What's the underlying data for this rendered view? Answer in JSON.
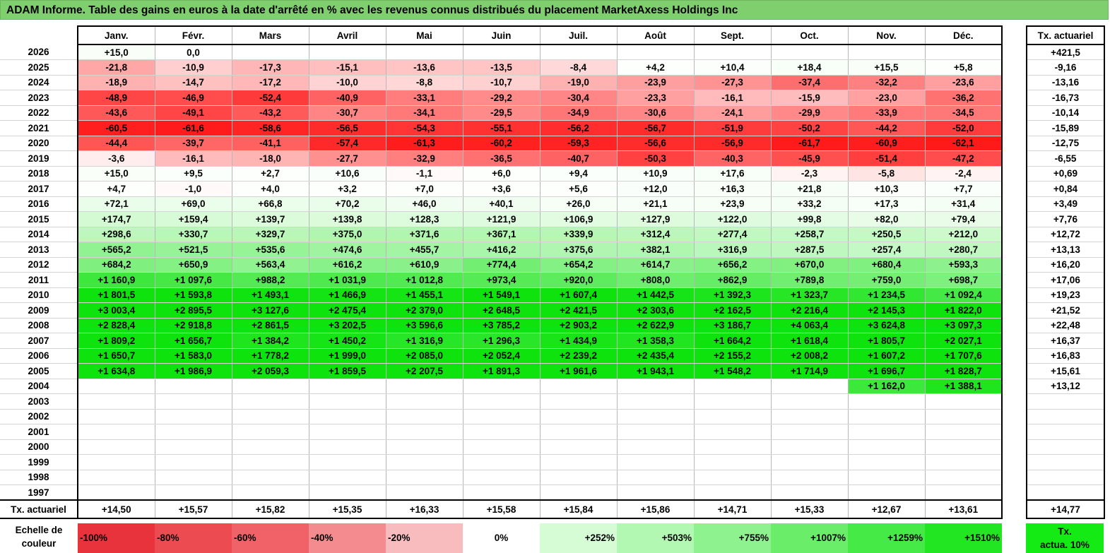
{
  "title": "ADAM Informe. Table des gains en euros à la date d'arrêté en % avec les revenus connus distribués du placement MarketAxess Holdings Inc",
  "chart_data": {
    "type": "table",
    "months": [
      "Janv.",
      "Févr.",
      "Mars",
      "Avril",
      "Mai",
      "Juin",
      "Juil.",
      "Août",
      "Sept.",
      "Oct.",
      "Nov.",
      "Déc."
    ],
    "actuarial_header": "Tx. actuariel",
    "rows": [
      {
        "year": "2026",
        "values": [
          "+15,0",
          "0,0",
          "",
          "",
          "",
          "",
          "",
          "",
          "",
          "",
          "",
          ""
        ],
        "rate": "+421,5"
      },
      {
        "year": "2025",
        "values": [
          "-21,8",
          "-10,9",
          "-17,3",
          "-15,1",
          "-13,6",
          "-13,5",
          "-8,4",
          "+4,2",
          "+10,4",
          "+18,4",
          "+15,5",
          "+5,8"
        ],
        "rate": "-9,16"
      },
      {
        "year": "2024",
        "values": [
          "-18,9",
          "-14,7",
          "-17,2",
          "-10,0",
          "-8,8",
          "-10,7",
          "-19,0",
          "-23,9",
          "-27,3",
          "-37,4",
          "-32,2",
          "-23,6"
        ],
        "rate": "-13,16"
      },
      {
        "year": "2023",
        "values": [
          "-48,9",
          "-46,9",
          "-52,4",
          "-40,9",
          "-33,1",
          "-29,2",
          "-30,4",
          "-23,3",
          "-16,1",
          "-15,9",
          "-23,0",
          "-36,2"
        ],
        "rate": "-16,73"
      },
      {
        "year": "2022",
        "values": [
          "-43,6",
          "-49,1",
          "-43,2",
          "-30,7",
          "-34,1",
          "-29,5",
          "-34,9",
          "-30,6",
          "-24,1",
          "-29,9",
          "-33,9",
          "-34,5"
        ],
        "rate": "-10,14"
      },
      {
        "year": "2021",
        "values": [
          "-60,5",
          "-61,6",
          "-58,6",
          "-56,5",
          "-54,3",
          "-55,1",
          "-56,2",
          "-56,7",
          "-51,9",
          "-50,2",
          "-44,2",
          "-52,0"
        ],
        "rate": "-15,89"
      },
      {
        "year": "2020",
        "values": [
          "-44,4",
          "-39,7",
          "-41,1",
          "-57,4",
          "-61,3",
          "-60,2",
          "-59,3",
          "-56,6",
          "-56,9",
          "-61,7",
          "-60,9",
          "-62,1"
        ],
        "rate": "-12,75"
      },
      {
        "year": "2019",
        "values": [
          "-3,6",
          "-16,1",
          "-18,0",
          "-27,7",
          "-32,9",
          "-36,5",
          "-40,7",
          "-50,3",
          "-40,3",
          "-45,9",
          "-51,4",
          "-47,2"
        ],
        "rate": "-6,55"
      },
      {
        "year": "2018",
        "values": [
          "+15,0",
          "+9,5",
          "+2,7",
          "+10,6",
          "-1,1",
          "+6,0",
          "+9,4",
          "+10,9",
          "+17,6",
          "-2,3",
          "-5,8",
          "-2,4"
        ],
        "rate": "+0,69"
      },
      {
        "year": "2017",
        "values": [
          "+4,7",
          "-1,0",
          "+4,0",
          "+3,2",
          "+7,0",
          "+3,6",
          "+5,6",
          "+12,0",
          "+16,3",
          "+21,8",
          "+10,3",
          "+7,7"
        ],
        "rate": "+0,84"
      },
      {
        "year": "2016",
        "values": [
          "+72,1",
          "+69,0",
          "+66,8",
          "+70,2",
          "+46,0",
          "+40,1",
          "+26,0",
          "+21,1",
          "+23,9",
          "+33,2",
          "+17,3",
          "+31,4"
        ],
        "rate": "+3,49"
      },
      {
        "year": "2015",
        "values": [
          "+174,7",
          "+159,4",
          "+139,7",
          "+139,8",
          "+128,3",
          "+121,9",
          "+106,9",
          "+127,9",
          "+122,0",
          "+99,8",
          "+82,0",
          "+79,4"
        ],
        "rate": "+7,76"
      },
      {
        "year": "2014",
        "values": [
          "+298,6",
          "+330,7",
          "+329,7",
          "+375,0",
          "+371,6",
          "+367,1",
          "+339,9",
          "+312,4",
          "+277,4",
          "+258,7",
          "+250,5",
          "+212,0"
        ],
        "rate": "+12,72"
      },
      {
        "year": "2013",
        "values": [
          "+565,2",
          "+521,5",
          "+535,6",
          "+474,6",
          "+455,7",
          "+416,2",
          "+375,6",
          "+382,1",
          "+316,9",
          "+287,5",
          "+257,4",
          "+280,7"
        ],
        "rate": "+13,13"
      },
      {
        "year": "2012",
        "values": [
          "+684,2",
          "+650,9",
          "+563,4",
          "+616,2",
          "+610,9",
          "+774,4",
          "+654,2",
          "+614,7",
          "+656,2",
          "+670,0",
          "+680,4",
          "+593,3"
        ],
        "rate": "+16,20"
      },
      {
        "year": "2011",
        "values": [
          "+1 160,9",
          "+1 097,6",
          "+988,2",
          "+1 031,9",
          "+1 012,8",
          "+973,4",
          "+920,0",
          "+808,0",
          "+862,9",
          "+789,8",
          "+759,0",
          "+698,7"
        ],
        "rate": "+17,06"
      },
      {
        "year": "2010",
        "values": [
          "+1 801,5",
          "+1 593,8",
          "+1 493,1",
          "+1 466,9",
          "+1 455,1",
          "+1 549,1",
          "+1 607,4",
          "+1 442,5",
          "+1 392,3",
          "+1 323,7",
          "+1 234,5",
          "+1 092,4"
        ],
        "rate": "+19,23"
      },
      {
        "year": "2009",
        "values": [
          "+3 003,4",
          "+2 895,5",
          "+3 127,6",
          "+2 475,4",
          "+2 379,0",
          "+2 648,5",
          "+2 421,5",
          "+2 303,6",
          "+2 162,5",
          "+2 216,4",
          "+2 145,3",
          "+1 822,0"
        ],
        "rate": "+21,52"
      },
      {
        "year": "2008",
        "values": [
          "+2 828,4",
          "+2 918,8",
          "+2 861,5",
          "+3 202,5",
          "+3 596,6",
          "+3 785,2",
          "+2 903,2",
          "+2 622,9",
          "+3 186,7",
          "+4 063,4",
          "+3 624,8",
          "+3 097,3"
        ],
        "rate": "+22,48"
      },
      {
        "year": "2007",
        "values": [
          "+1 809,2",
          "+1 656,7",
          "+1 384,2",
          "+1 450,2",
          "+1 316,9",
          "+1 296,3",
          "+1 434,9",
          "+1 358,3",
          "+1 664,2",
          "+1 618,4",
          "+1 805,7",
          "+2 027,1"
        ],
        "rate": "+16,37"
      },
      {
        "year": "2006",
        "values": [
          "+1 650,7",
          "+1 583,0",
          "+1 778,2",
          "+1 999,0",
          "+2 085,0",
          "+2 052,4",
          "+2 239,2",
          "+2 435,4",
          "+2 155,2",
          "+2 008,2",
          "+1 607,2",
          "+1 707,6"
        ],
        "rate": "+16,83"
      },
      {
        "year": "2005",
        "values": [
          "+1 634,8",
          "+1 986,9",
          "+2 059,3",
          "+1 859,5",
          "+2 207,5",
          "+1 891,3",
          "+1 961,6",
          "+1 943,1",
          "+1 548,2",
          "+1 714,9",
          "+1 696,7",
          "+1 828,7"
        ],
        "rate": "+15,61"
      },
      {
        "year": "2004",
        "values": [
          "",
          "",
          "",
          "",
          "",
          "",
          "",
          "",
          "",
          "",
          "+1 162,0",
          "+1 388,1"
        ],
        "rate": "+13,12"
      },
      {
        "year": "2003",
        "values": [
          "",
          "",
          "",
          "",
          "",
          "",
          "",
          "",
          "",
          "",
          "",
          ""
        ],
        "rate": ""
      },
      {
        "year": "2002",
        "values": [
          "",
          "",
          "",
          "",
          "",
          "",
          "",
          "",
          "",
          "",
          "",
          ""
        ],
        "rate": ""
      },
      {
        "year": "2001",
        "values": [
          "",
          "",
          "",
          "",
          "",
          "",
          "",
          "",
          "",
          "",
          "",
          ""
        ],
        "rate": ""
      },
      {
        "year": "2000",
        "values": [
          "",
          "",
          "",
          "",
          "",
          "",
          "",
          "",
          "",
          "",
          "",
          ""
        ],
        "rate": ""
      },
      {
        "year": "1999",
        "values": [
          "",
          "",
          "",
          "",
          "",
          "",
          "",
          "",
          "",
          "",
          "",
          ""
        ],
        "rate": ""
      },
      {
        "year": "1998",
        "values": [
          "",
          "",
          "",
          "",
          "",
          "",
          "",
          "",
          "",
          "",
          "",
          ""
        ],
        "rate": ""
      },
      {
        "year": "1997",
        "values": [
          "",
          "",
          "",
          "",
          "",
          "",
          "",
          "",
          "",
          "",
          "",
          ""
        ],
        "rate": ""
      }
    ],
    "actuarial_row": {
      "label": "Tx. actuariel",
      "values": [
        "+14,50",
        "+15,57",
        "+15,82",
        "+15,35",
        "+16,33",
        "+15,58",
        "+15,84",
        "+15,86",
        "+14,71",
        "+15,33",
        "+12,67",
        "+13,61"
      ],
      "overall": "+14,77"
    },
    "color_scale": {
      "label_line1": "Echelle de",
      "label_line2": "couleur",
      "stops": [
        {
          "label": "-100%",
          "value": -100,
          "color": "#e8333c"
        },
        {
          "label": "-80%",
          "value": -80,
          "color": "#ec4b52"
        },
        {
          "label": "-60%",
          "value": -60,
          "color": "#f06267"
        },
        {
          "label": "-40%",
          "value": -40,
          "color": "#f38b8f"
        },
        {
          "label": "-20%",
          "value": -20,
          "color": "#f8bcbe"
        },
        {
          "label": "0%",
          "value": 0,
          "color": "#ffffff"
        },
        {
          "label": "+252%",
          "value": 252,
          "color": "#d6fcd6"
        },
        {
          "label": "+503%",
          "value": 503,
          "color": "#b2f7b2"
        },
        {
          "label": "+755%",
          "value": 755,
          "color": "#8ef28e"
        },
        {
          "label": "+1007%",
          "value": 1007,
          "color": "#6aee6a"
        },
        {
          "label": "+1259%",
          "value": 1259,
          "color": "#46ea46"
        },
        {
          "label": "+1510%",
          "value": 1510,
          "color": "#22e622"
        }
      ],
      "actuarial_label_line1": "Tx.",
      "actuarial_label_line2": "actua. 10%",
      "actuarial_color": "#14ea14"
    }
  }
}
